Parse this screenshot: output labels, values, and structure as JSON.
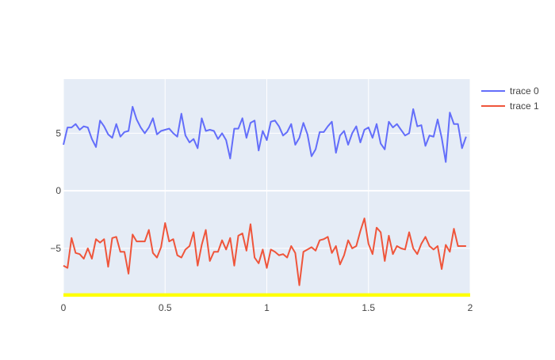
{
  "colors": {
    "background": "#ffffff",
    "plot_background": "#e5ecf6",
    "grid": "#ffffff",
    "tick_text": "#444444",
    "bottom_band": "#ffff00",
    "trace_0": "#636efa",
    "trace_1": "#ef553b"
  },
  "legend": {
    "placement": "top-right, outside plot",
    "entries": [
      {
        "name": "trace 0",
        "color": "#636efa"
      },
      {
        "name": "trace 1",
        "color": "#ef553b"
      }
    ]
  },
  "chart_data": {
    "type": "line",
    "title": "",
    "xlabel": "",
    "ylabel": "",
    "xlim": [
      0,
      2
    ],
    "ylim": [
      -9.2,
      9.7
    ],
    "grid": true,
    "x_ticks": [
      {
        "value": 0,
        "label": "0"
      },
      {
        "value": 0.5,
        "label": "0.5"
      },
      {
        "value": 1,
        "label": "1"
      },
      {
        "value": 1.5,
        "label": "1.5"
      },
      {
        "value": 2,
        "label": "2"
      }
    ],
    "y_ticks": [
      {
        "value": -5,
        "label": "−5"
      },
      {
        "value": 0,
        "label": "0"
      },
      {
        "value": 5,
        "label": "5"
      }
    ],
    "shaded_band": {
      "y_from": -9.2,
      "y_to": -8.9,
      "color": "#ffff00"
    },
    "x_start": 0,
    "x_step": 0.02,
    "series": [
      {
        "name": "trace 0",
        "color": "#636efa",
        "values": [
          4.0,
          5.5,
          5.5,
          5.8,
          5.3,
          5.6,
          5.5,
          4.5,
          3.8,
          6.1,
          5.6,
          4.9,
          4.6,
          5.8,
          4.7,
          5.1,
          5.2,
          7.3,
          6.2,
          5.5,
          5.0,
          5.5,
          6.3,
          4.9,
          5.2,
          5.3,
          5.4,
          5.0,
          4.7,
          6.7,
          4.8,
          4.2,
          4.5,
          3.7,
          6.3,
          5.2,
          5.3,
          5.2,
          4.5,
          5.0,
          4.4,
          2.8,
          5.4,
          5.4,
          6.3,
          4.6,
          5.9,
          6.1,
          3.5,
          5.2,
          4.4,
          6.0,
          6.1,
          5.6,
          4.8,
          5.1,
          5.8,
          4.0,
          4.6,
          5.9,
          4.9,
          3.0,
          3.6,
          5.1,
          5.1,
          5.6,
          6.0,
          3.3,
          4.8,
          5.2,
          4.0,
          5.0,
          5.6,
          4.2,
          5.3,
          5.5,
          4.6,
          5.8,
          4.1,
          3.6,
          6.0,
          5.5,
          5.8,
          5.3,
          4.8,
          5.0,
          7.1,
          5.6,
          5.7,
          3.9,
          4.8,
          4.7,
          6.2,
          4.6,
          2.5,
          6.8,
          5.8,
          5.8,
          3.7,
          4.7
        ]
      },
      {
        "name": "trace 1",
        "color": "#ef553b",
        "values": [
          -6.5,
          -6.7,
          -4.1,
          -5.4,
          -5.5,
          -5.9,
          -5.0,
          -5.9,
          -4.2,
          -4.5,
          -4.2,
          -6.6,
          -4.1,
          -4.0,
          -5.3,
          -5.3,
          -7.2,
          -3.8,
          -4.4,
          -4.4,
          -4.4,
          -3.4,
          -5.4,
          -5.8,
          -4.9,
          -2.8,
          -4.4,
          -4.2,
          -5.6,
          -5.8,
          -5.1,
          -4.8,
          -3.6,
          -6.5,
          -4.7,
          -3.4,
          -6.1,
          -5.3,
          -5.3,
          -4.3,
          -5.1,
          -4.1,
          -6.5,
          -3.9,
          -3.7,
          -5.2,
          -2.9,
          -5.8,
          -6.3,
          -5.1,
          -6.7,
          -5.1,
          -5.3,
          -5.6,
          -5.5,
          -5.8,
          -4.8,
          -5.4,
          -8.2,
          -5.3,
          -5.1,
          -4.9,
          -5.2,
          -4.3,
          -4.2,
          -4.0,
          -5.4,
          -4.8,
          -6.4,
          -5.6,
          -4.3,
          -5.0,
          -4.8,
          -3.5,
          -2.4,
          -4.6,
          -5.5,
          -3.2,
          -3.6,
          -6.1,
          -3.9,
          -5.5,
          -4.8,
          -5.0,
          -5.1,
          -3.6,
          -5.0,
          -5.5,
          -4.6,
          -4.0,
          -4.8,
          -5.1,
          -4.8,
          -6.8,
          -4.7,
          -5.3,
          -3.3,
          -4.8,
          -4.8,
          -4.8
        ]
      }
    ]
  }
}
